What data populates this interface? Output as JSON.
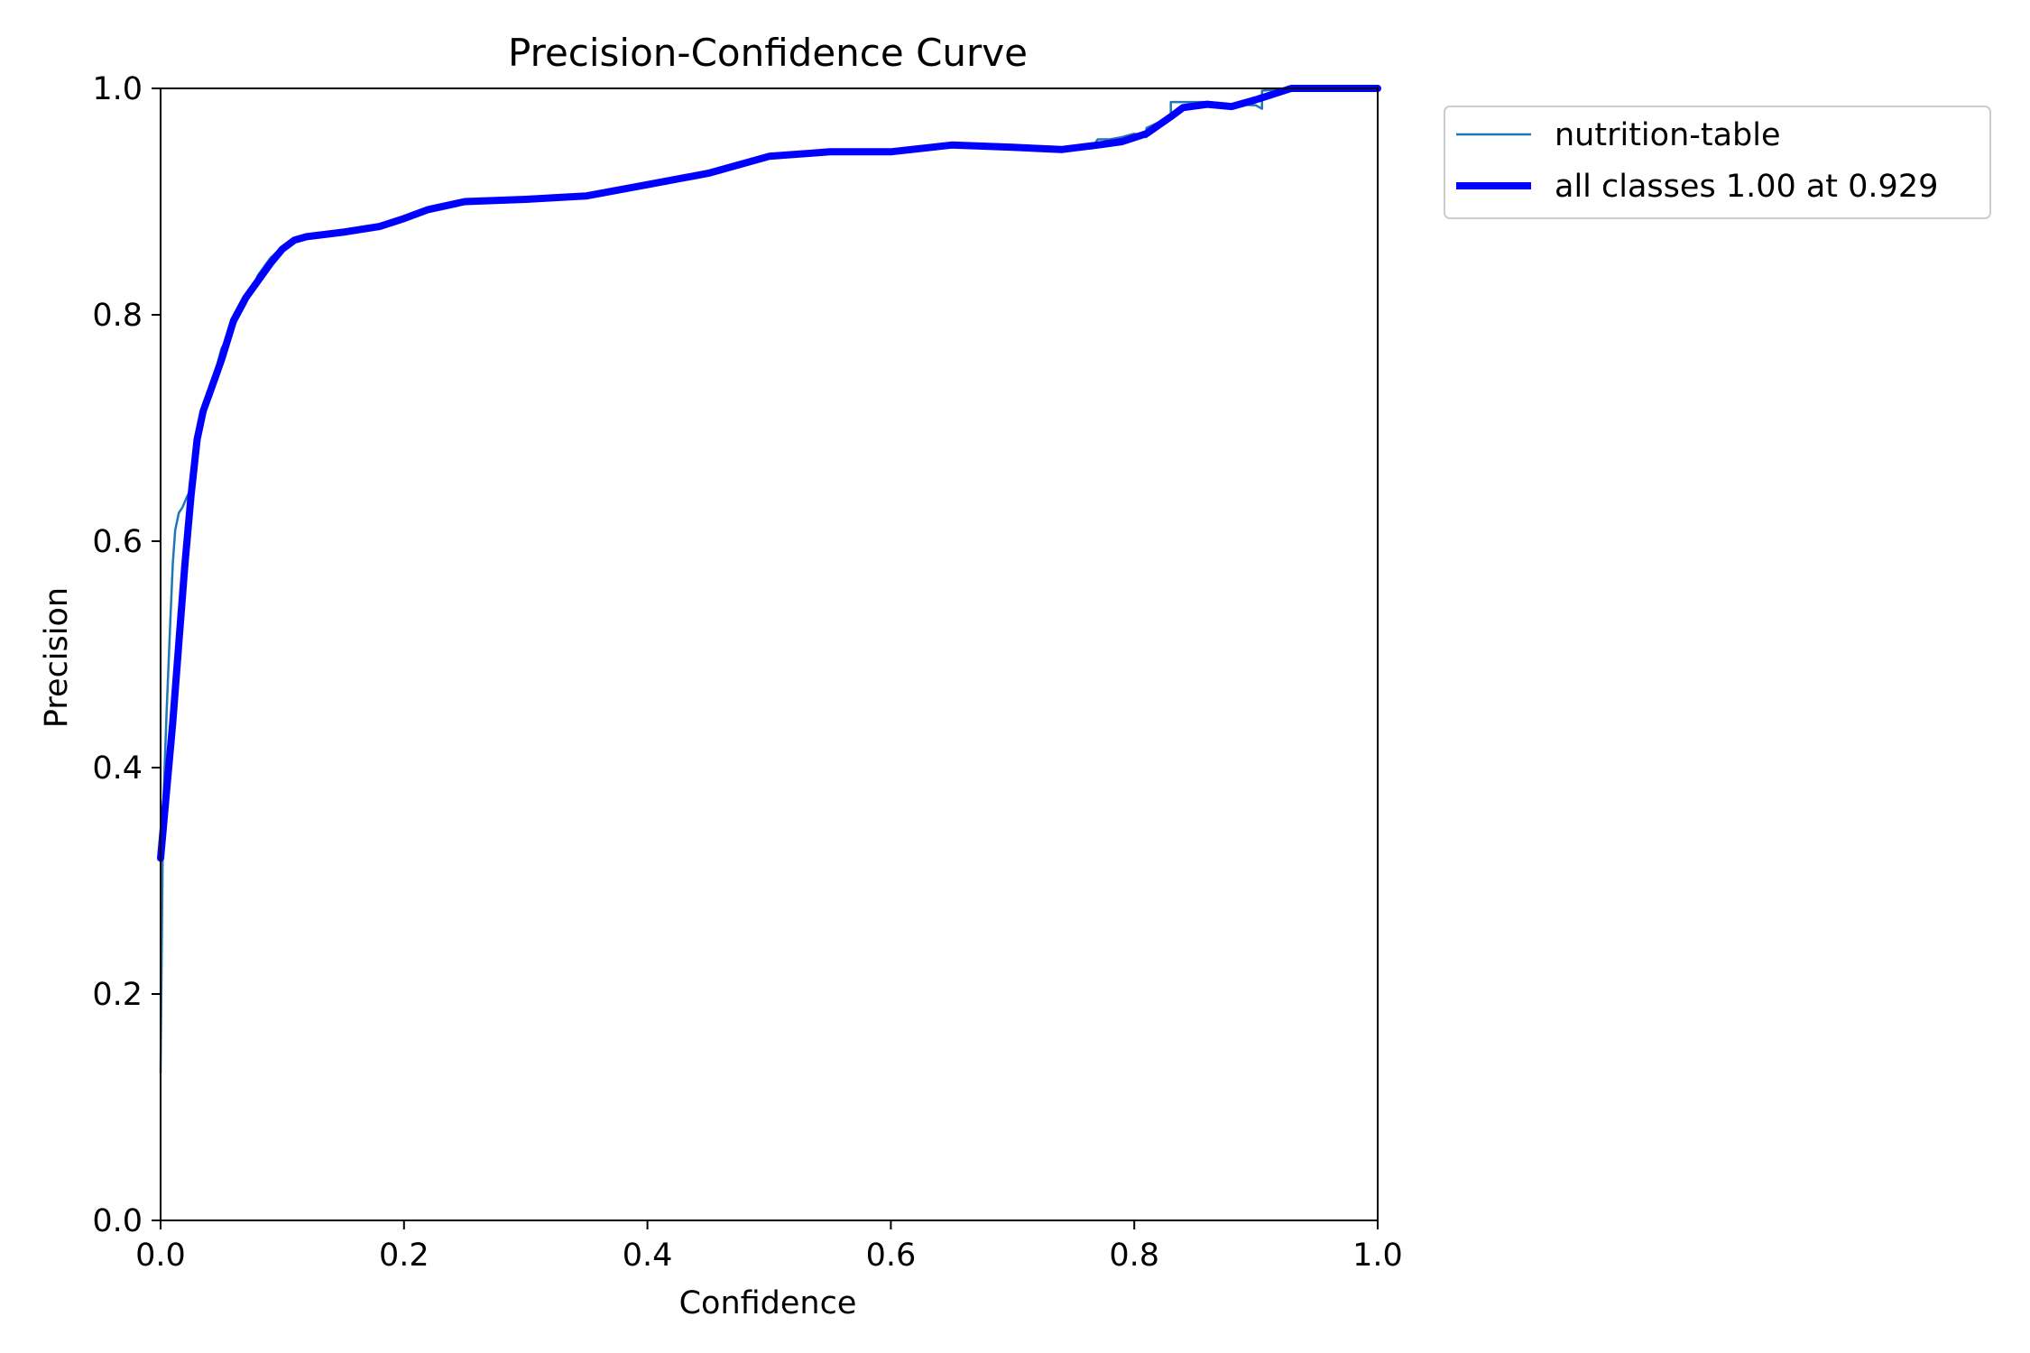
{
  "chart_data": {
    "type": "line",
    "title": "Precision-Confidence Curve",
    "xlabel": "Confidence",
    "ylabel": "Precision",
    "xlim": [
      0,
      1
    ],
    "ylim": [
      0,
      1
    ],
    "xticks": [
      "0.0",
      "0.2",
      "0.4",
      "0.6",
      "0.8",
      "1.0"
    ],
    "yticks": [
      "0.0",
      "0.2",
      "0.4",
      "0.6",
      "0.8",
      "1.0"
    ],
    "grid": false,
    "legend_position": "outside-top-right",
    "series": [
      {
        "name": "nutrition-table",
        "color": "#1f77b4",
        "style": "thin",
        "x": [
          0.0,
          0.002,
          0.005,
          0.008,
          0.01,
          0.012,
          0.015,
          0.018,
          0.022,
          0.027,
          0.032,
          0.036,
          0.04,
          0.045,
          0.05,
          0.055,
          0.06,
          0.07,
          0.08,
          0.09,
          0.1,
          0.12,
          0.15,
          0.18,
          0.2,
          0.22,
          0.25,
          0.3,
          0.35,
          0.4,
          0.45,
          0.5,
          0.55,
          0.6,
          0.65,
          0.7,
          0.74,
          0.765,
          0.77,
          0.78,
          0.79,
          0.8,
          0.81,
          0.81,
          0.83,
          0.83,
          0.86,
          0.88,
          0.9,
          0.905,
          0.905,
          0.93,
          0.96,
          1.0
        ],
        "y": [
          0.13,
          0.36,
          0.45,
          0.53,
          0.58,
          0.61,
          0.625,
          0.63,
          0.64,
          0.65,
          0.69,
          0.72,
          0.73,
          0.75,
          0.77,
          0.78,
          0.79,
          0.81,
          0.835,
          0.85,
          0.86,
          0.87,
          0.874,
          0.878,
          0.885,
          0.893,
          0.9,
          0.902,
          0.905,
          0.915,
          0.925,
          0.94,
          0.945,
          0.944,
          0.95,
          0.948,
          0.946,
          0.947,
          0.955,
          0.955,
          0.957,
          0.96,
          0.957,
          0.965,
          0.975,
          0.988,
          0.988,
          0.986,
          0.985,
          0.982,
          0.998,
          1.0,
          1.0,
          1.0
        ]
      },
      {
        "name": "all classes 1.00 at 0.929",
        "color": "#0000ff",
        "style": "thick",
        "x": [
          0.0,
          0.005,
          0.01,
          0.015,
          0.02,
          0.025,
          0.03,
          0.035,
          0.04,
          0.05,
          0.06,
          0.07,
          0.08,
          0.09,
          0.1,
          0.11,
          0.12,
          0.15,
          0.18,
          0.2,
          0.22,
          0.25,
          0.3,
          0.35,
          0.4,
          0.45,
          0.5,
          0.55,
          0.6,
          0.65,
          0.7,
          0.74,
          0.77,
          0.79,
          0.81,
          0.83,
          0.84,
          0.86,
          0.88,
          0.9,
          0.929,
          0.96,
          1.0
        ],
        "y": [
          0.32,
          0.38,
          0.44,
          0.51,
          0.58,
          0.64,
          0.69,
          0.715,
          0.73,
          0.76,
          0.795,
          0.815,
          0.83,
          0.845,
          0.858,
          0.866,
          0.869,
          0.873,
          0.878,
          0.885,
          0.893,
          0.9,
          0.902,
          0.905,
          0.915,
          0.925,
          0.94,
          0.944,
          0.944,
          0.95,
          0.948,
          0.946,
          0.95,
          0.953,
          0.96,
          0.975,
          0.983,
          0.986,
          0.984,
          0.99,
          1.0,
          1.0,
          1.0
        ]
      }
    ]
  }
}
